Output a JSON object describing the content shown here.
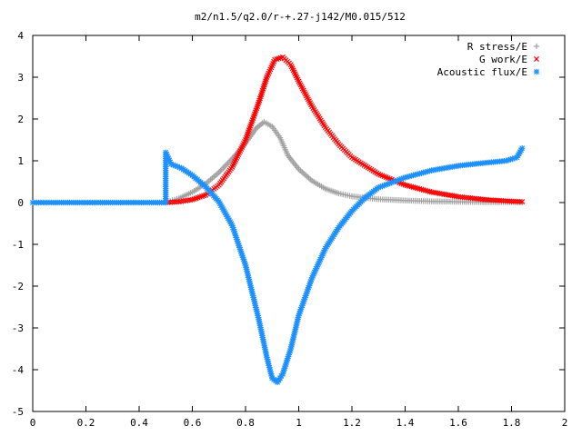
{
  "chart_data": {
    "type": "scatter",
    "title": "m2/n1.5/q2.0/r-+.27-j142/M0.015/512",
    "xlabel": "",
    "ylabel": "",
    "xlim": [
      0,
      2
    ],
    "ylim": [
      -5,
      4
    ],
    "x_ticks": [
      "0",
      "0.2",
      "0.4",
      "0.6",
      "0.8",
      "1",
      "1.2",
      "1.4",
      "1.6",
      "1.8",
      "2"
    ],
    "y_ticks": [
      "4",
      "3",
      "2",
      "1",
      "0",
      "-1",
      "-2",
      "-3",
      "-4",
      "-5"
    ],
    "legend_position": "top-right",
    "grid": false,
    "series": [
      {
        "name": "R stress/E",
        "marker": "+",
        "color": "#a0a0a0",
        "points": [
          [
            0.5,
            0.0
          ],
          [
            0.55,
            0.1
          ],
          [
            0.6,
            0.25
          ],
          [
            0.65,
            0.45
          ],
          [
            0.7,
            0.72
          ],
          [
            0.75,
            1.05
          ],
          [
            0.8,
            1.42
          ],
          [
            0.84,
            1.78
          ],
          [
            0.87,
            1.93
          ],
          [
            0.9,
            1.82
          ],
          [
            0.93,
            1.55
          ],
          [
            0.96,
            1.12
          ],
          [
            1.0,
            0.8
          ],
          [
            1.05,
            0.52
          ],
          [
            1.1,
            0.33
          ],
          [
            1.15,
            0.22
          ],
          [
            1.2,
            0.15
          ],
          [
            1.3,
            0.08
          ],
          [
            1.4,
            0.05
          ],
          [
            1.5,
            0.03
          ],
          [
            1.6,
            0.02
          ],
          [
            1.7,
            0.01
          ],
          [
            1.8,
            0.01
          ],
          [
            1.84,
            0.0
          ]
        ]
      },
      {
        "name": "G work/E",
        "marker": "x",
        "color": "#ff0000",
        "points": [
          [
            0.5,
            0.0
          ],
          [
            0.55,
            0.02
          ],
          [
            0.6,
            0.07
          ],
          [
            0.65,
            0.18
          ],
          [
            0.7,
            0.42
          ],
          [
            0.75,
            0.85
          ],
          [
            0.8,
            1.5
          ],
          [
            0.85,
            2.4
          ],
          [
            0.88,
            3.0
          ],
          [
            0.91,
            3.42
          ],
          [
            0.94,
            3.48
          ],
          [
            0.97,
            3.3
          ],
          [
            1.0,
            2.9
          ],
          [
            1.05,
            2.3
          ],
          [
            1.1,
            1.8
          ],
          [
            1.15,
            1.4
          ],
          [
            1.2,
            1.08
          ],
          [
            1.3,
            0.68
          ],
          [
            1.4,
            0.42
          ],
          [
            1.5,
            0.25
          ],
          [
            1.6,
            0.14
          ],
          [
            1.7,
            0.07
          ],
          [
            1.8,
            0.03
          ],
          [
            1.84,
            0.02
          ]
        ]
      },
      {
        "name": "Acoustic flux/E",
        "marker": "*",
        "color": "#1e90ff",
        "points": [
          [
            0.0,
            0.0
          ],
          [
            0.1,
            0.0
          ],
          [
            0.2,
            0.0
          ],
          [
            0.3,
            0.0
          ],
          [
            0.4,
            0.0
          ],
          [
            0.5,
            0.0
          ],
          [
            0.5,
            1.2
          ],
          [
            0.52,
            0.92
          ],
          [
            0.56,
            0.82
          ],
          [
            0.6,
            0.65
          ],
          [
            0.65,
            0.38
          ],
          [
            0.7,
            0.02
          ],
          [
            0.75,
            -0.55
          ],
          [
            0.8,
            -1.5
          ],
          [
            0.85,
            -2.8
          ],
          [
            0.88,
            -3.7
          ],
          [
            0.9,
            -4.2
          ],
          [
            0.92,
            -4.3
          ],
          [
            0.94,
            -4.1
          ],
          [
            0.97,
            -3.5
          ],
          [
            1.0,
            -2.7
          ],
          [
            1.05,
            -1.8
          ],
          [
            1.1,
            -1.1
          ],
          [
            1.15,
            -0.6
          ],
          [
            1.2,
            -0.2
          ],
          [
            1.25,
            0.12
          ],
          [
            1.3,
            0.36
          ],
          [
            1.4,
            0.6
          ],
          [
            1.5,
            0.77
          ],
          [
            1.6,
            0.88
          ],
          [
            1.7,
            0.95
          ],
          [
            1.78,
            1.0
          ],
          [
            1.82,
            1.08
          ],
          [
            1.84,
            1.3
          ]
        ]
      }
    ]
  }
}
